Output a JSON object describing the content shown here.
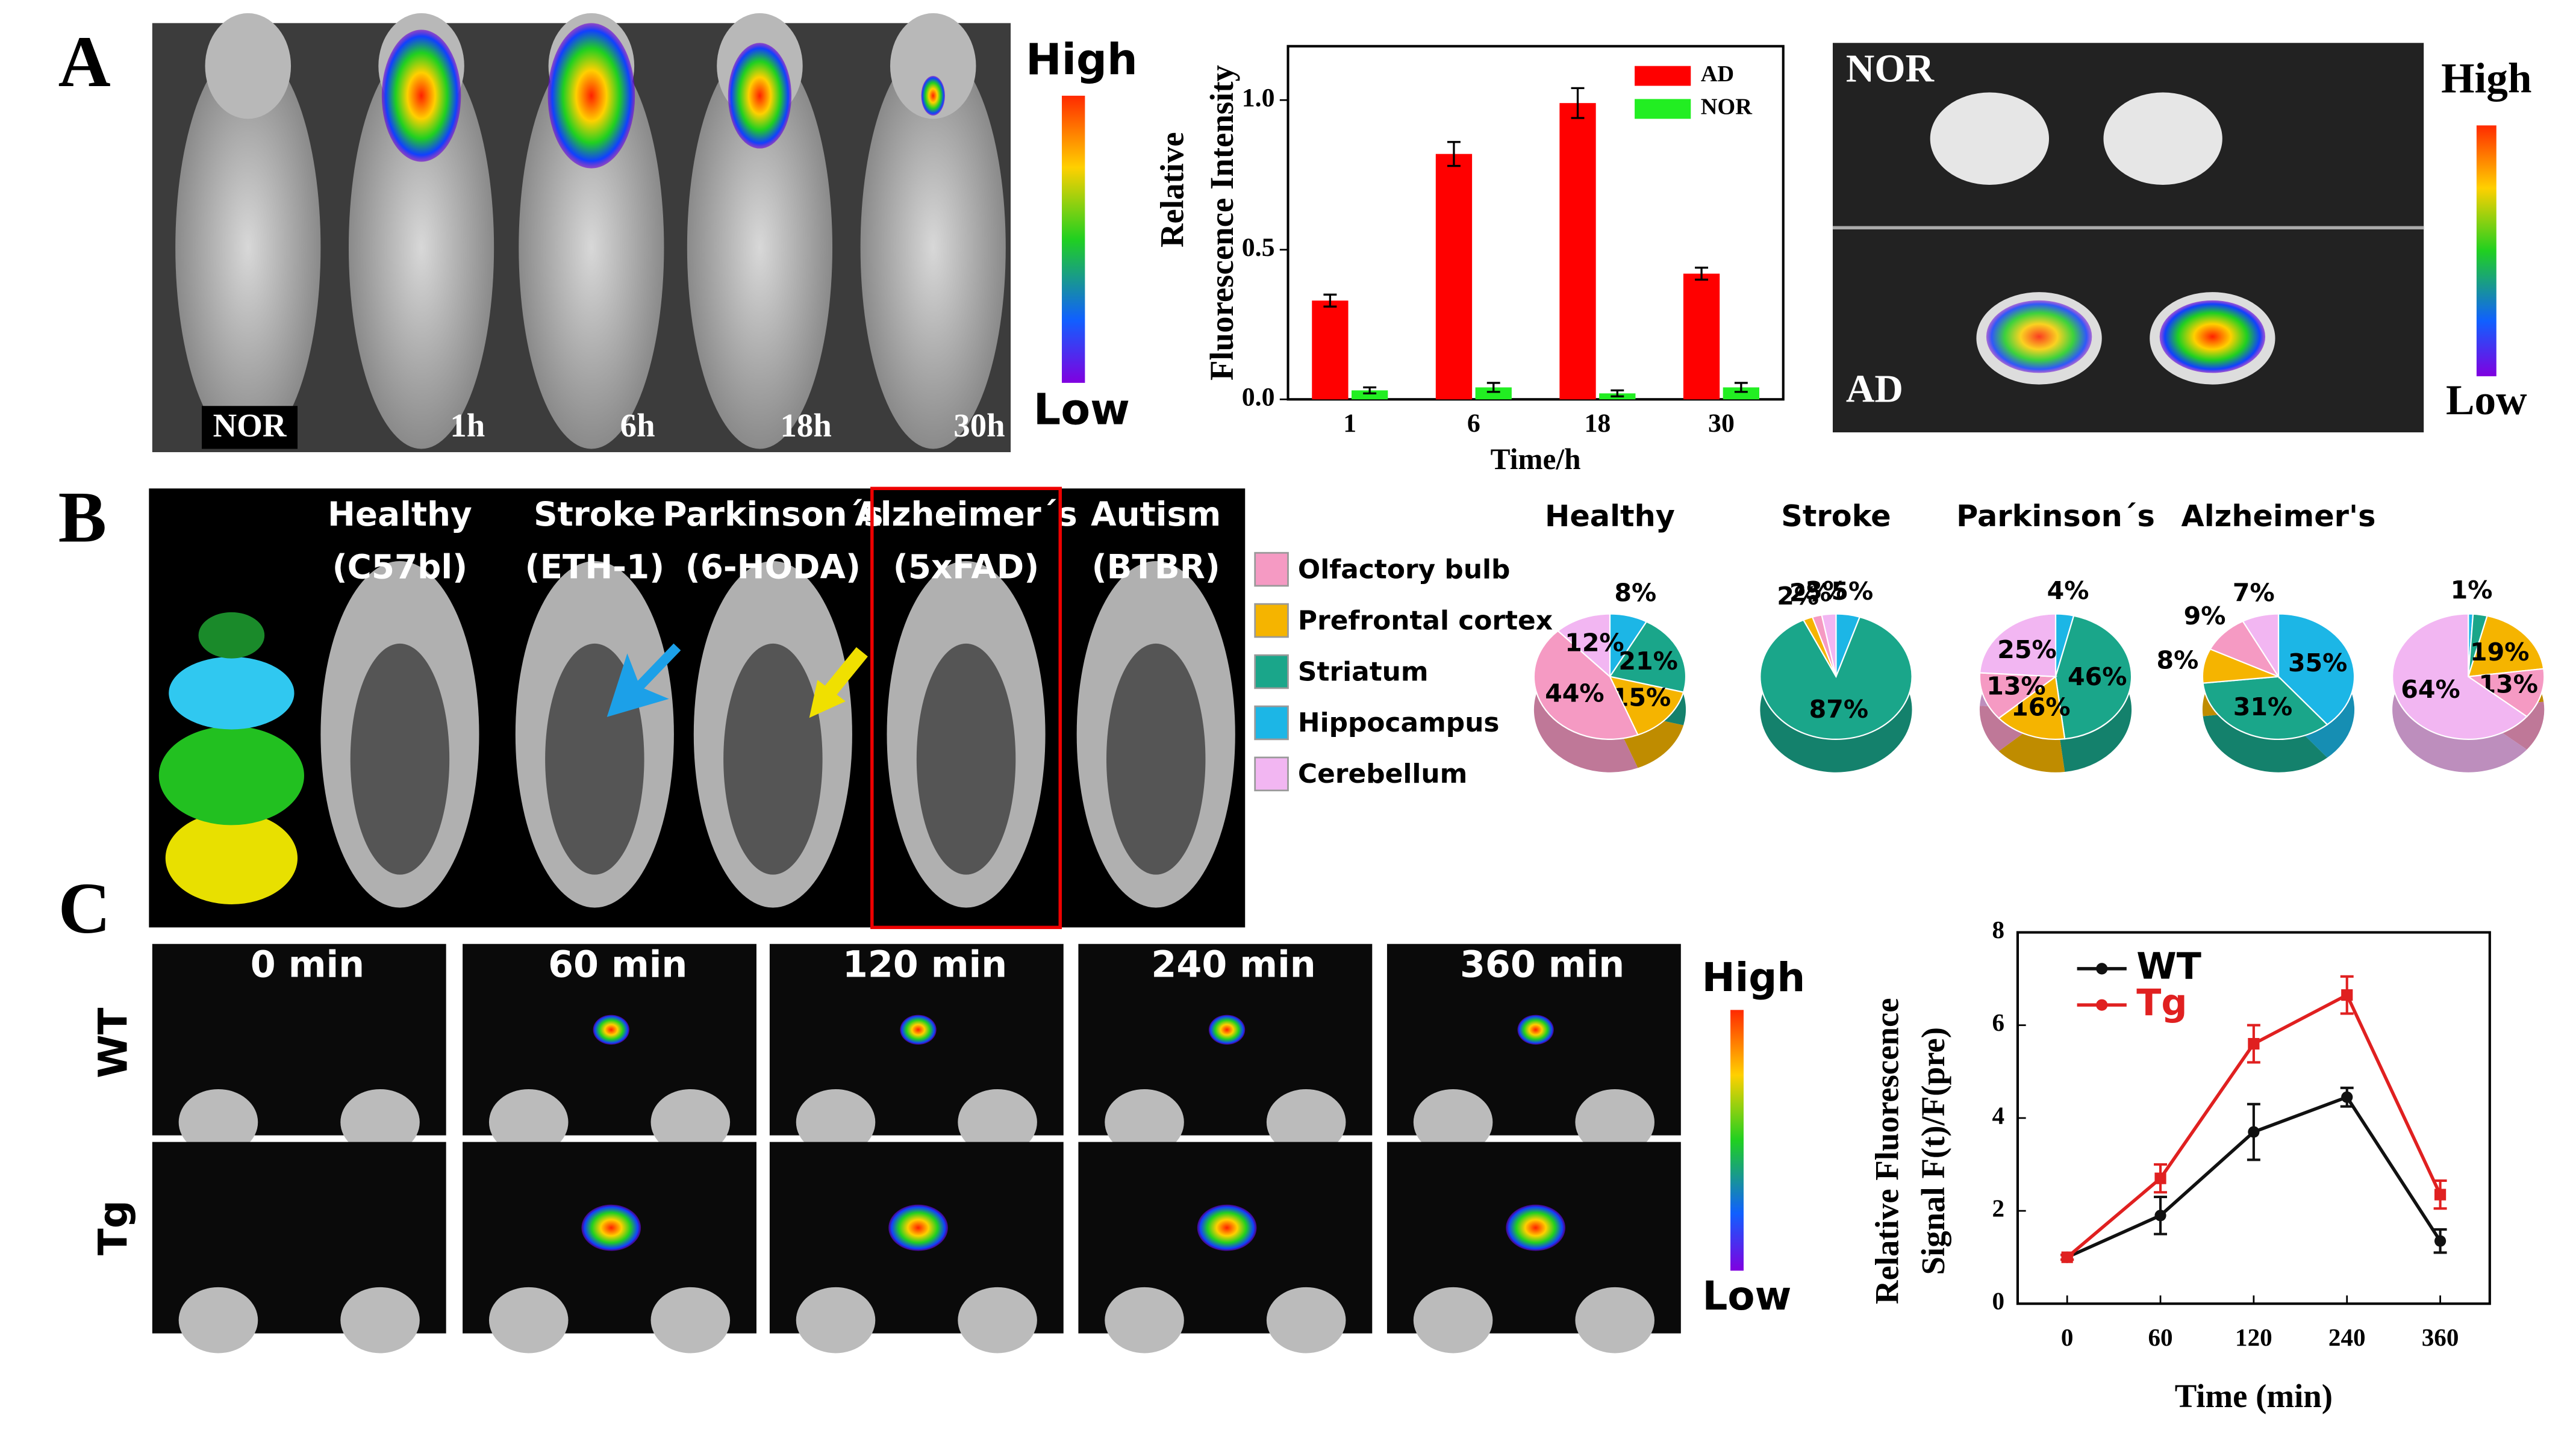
{
  "figure": {
    "panel_labels": [
      "A",
      "B",
      "C"
    ],
    "a_mouse_labels": [
      "NOR",
      "1h",
      "6h",
      "18h",
      "30h"
    ],
    "a_colorbar": [
      "High",
      "Low"
    ],
    "a_brain_labels": [
      "NOR",
      "AD"
    ],
    "a_brain_colorbar": [
      "High",
      "Low"
    ],
    "b_columns": [
      [
        "Healthy",
        "(C57bl)"
      ],
      [
        "Stroke",
        "(ETH-1)"
      ],
      [
        "Parkinson´s",
        "(6-HODA)"
      ],
      [
        "Alzheimer´s",
        "(5xFAD)"
      ],
      [
        "Autism",
        "(BTBR)"
      ]
    ],
    "c_times": [
      "0 min",
      "60 min",
      "120 min",
      "240 min",
      "360 min"
    ],
    "c_rows": [
      "WT",
      "Tg"
    ],
    "c_colorbar": [
      "High",
      "Low"
    ]
  },
  "chart_data": [
    {
      "type": "bar",
      "xlabel": "Time/h",
      "ylabel": [
        "Relative",
        "Fluorescence Intensity"
      ],
      "categories": [
        "1",
        "6",
        "18",
        "30"
      ],
      "series": [
        {
          "name": "AD",
          "color": "#ff0000",
          "values": [
            0.33,
            0.82,
            0.99,
            0.42
          ],
          "errors": [
            0.02,
            0.04,
            0.05,
            0.02
          ]
        },
        {
          "name": "NOR",
          "color": "#22ee22",
          "values": [
            0.03,
            0.04,
            0.02,
            0.04
          ],
          "errors": [
            0.01,
            0.015,
            0.01,
            0.015
          ]
        }
      ],
      "ylim": [
        0,
        1.18
      ],
      "yticks": [
        {
          "value": 0,
          "label": "0.0"
        },
        0.5,
        {
          "value": 1,
          "label": "1.0"
        }
      ],
      "legend": "upper right"
    },
    {
      "type": "pie",
      "categories": [
        "Olfactory bulb",
        "Prefrontal cortex",
        "Striatum",
        "Hippocampus",
        "Cerebellum"
      ],
      "colors": [
        "#f59ac3",
        "#f5b400",
        "#1aa68a",
        "#1cb6e6",
        "#f2b6f2"
      ],
      "series": [
        {
          "name": "Healthy",
          "values": [
            44,
            15,
            21,
            8,
            12
          ],
          "value_labels": [
            "44%",
            "15%",
            "21%",
            "8%",
            "12%"
          ]
        },
        {
          "name": "Stroke",
          "values": [
            2,
            2,
            87,
            5,
            3
          ],
          "value_labels": [
            "2%",
            "2%",
            "87%",
            "5%",
            "3%"
          ]
        },
        {
          "name": "Parkinson´s",
          "values": [
            13,
            16,
            46,
            4,
            25
          ],
          "value_labels": [
            "13%",
            "16%",
            "46%",
            "4%",
            "25%"
          ]
        },
        {
          "name": "Alzheimer's",
          "values": [
            9,
            8,
            31,
            35,
            7
          ],
          "value_labels": [
            "9%",
            "8%",
            "31%",
            "35%",
            "7%"
          ]
        },
        {
          "values": [
            13,
            19,
            3,
            1,
            64
          ],
          "value_labels": [
            "13%",
            "19%",
            null,
            "1%",
            "64%"
          ]
        }
      ]
    },
    {
      "type": "line",
      "xlabel": "Time (min)",
      "ylabel": [
        "Relative Fluorescence",
        "Signal F(t)/F(pre)"
      ],
      "categories": [
        "0",
        "60",
        "120",
        "240",
        "360"
      ],
      "series": [
        {
          "name": "WT",
          "color": "#111111",
          "marker": "circle",
          "values": [
            1.0,
            1.9,
            3.7,
            4.45,
            1.35
          ],
          "errors": [
            0.05,
            0.4,
            0.6,
            0.2,
            0.25
          ]
        },
        {
          "name": "Tg",
          "color": "#e02020",
          "marker": "square",
          "values": [
            1.0,
            2.7,
            5.6,
            6.65,
            2.35
          ],
          "errors": [
            0.05,
            0.3,
            0.4,
            0.4,
            0.3
          ]
        }
      ],
      "ylim": [
        0,
        8
      ],
      "yticks": [
        0,
        2,
        4,
        6,
        8
      ],
      "legend": "upper left"
    }
  ]
}
